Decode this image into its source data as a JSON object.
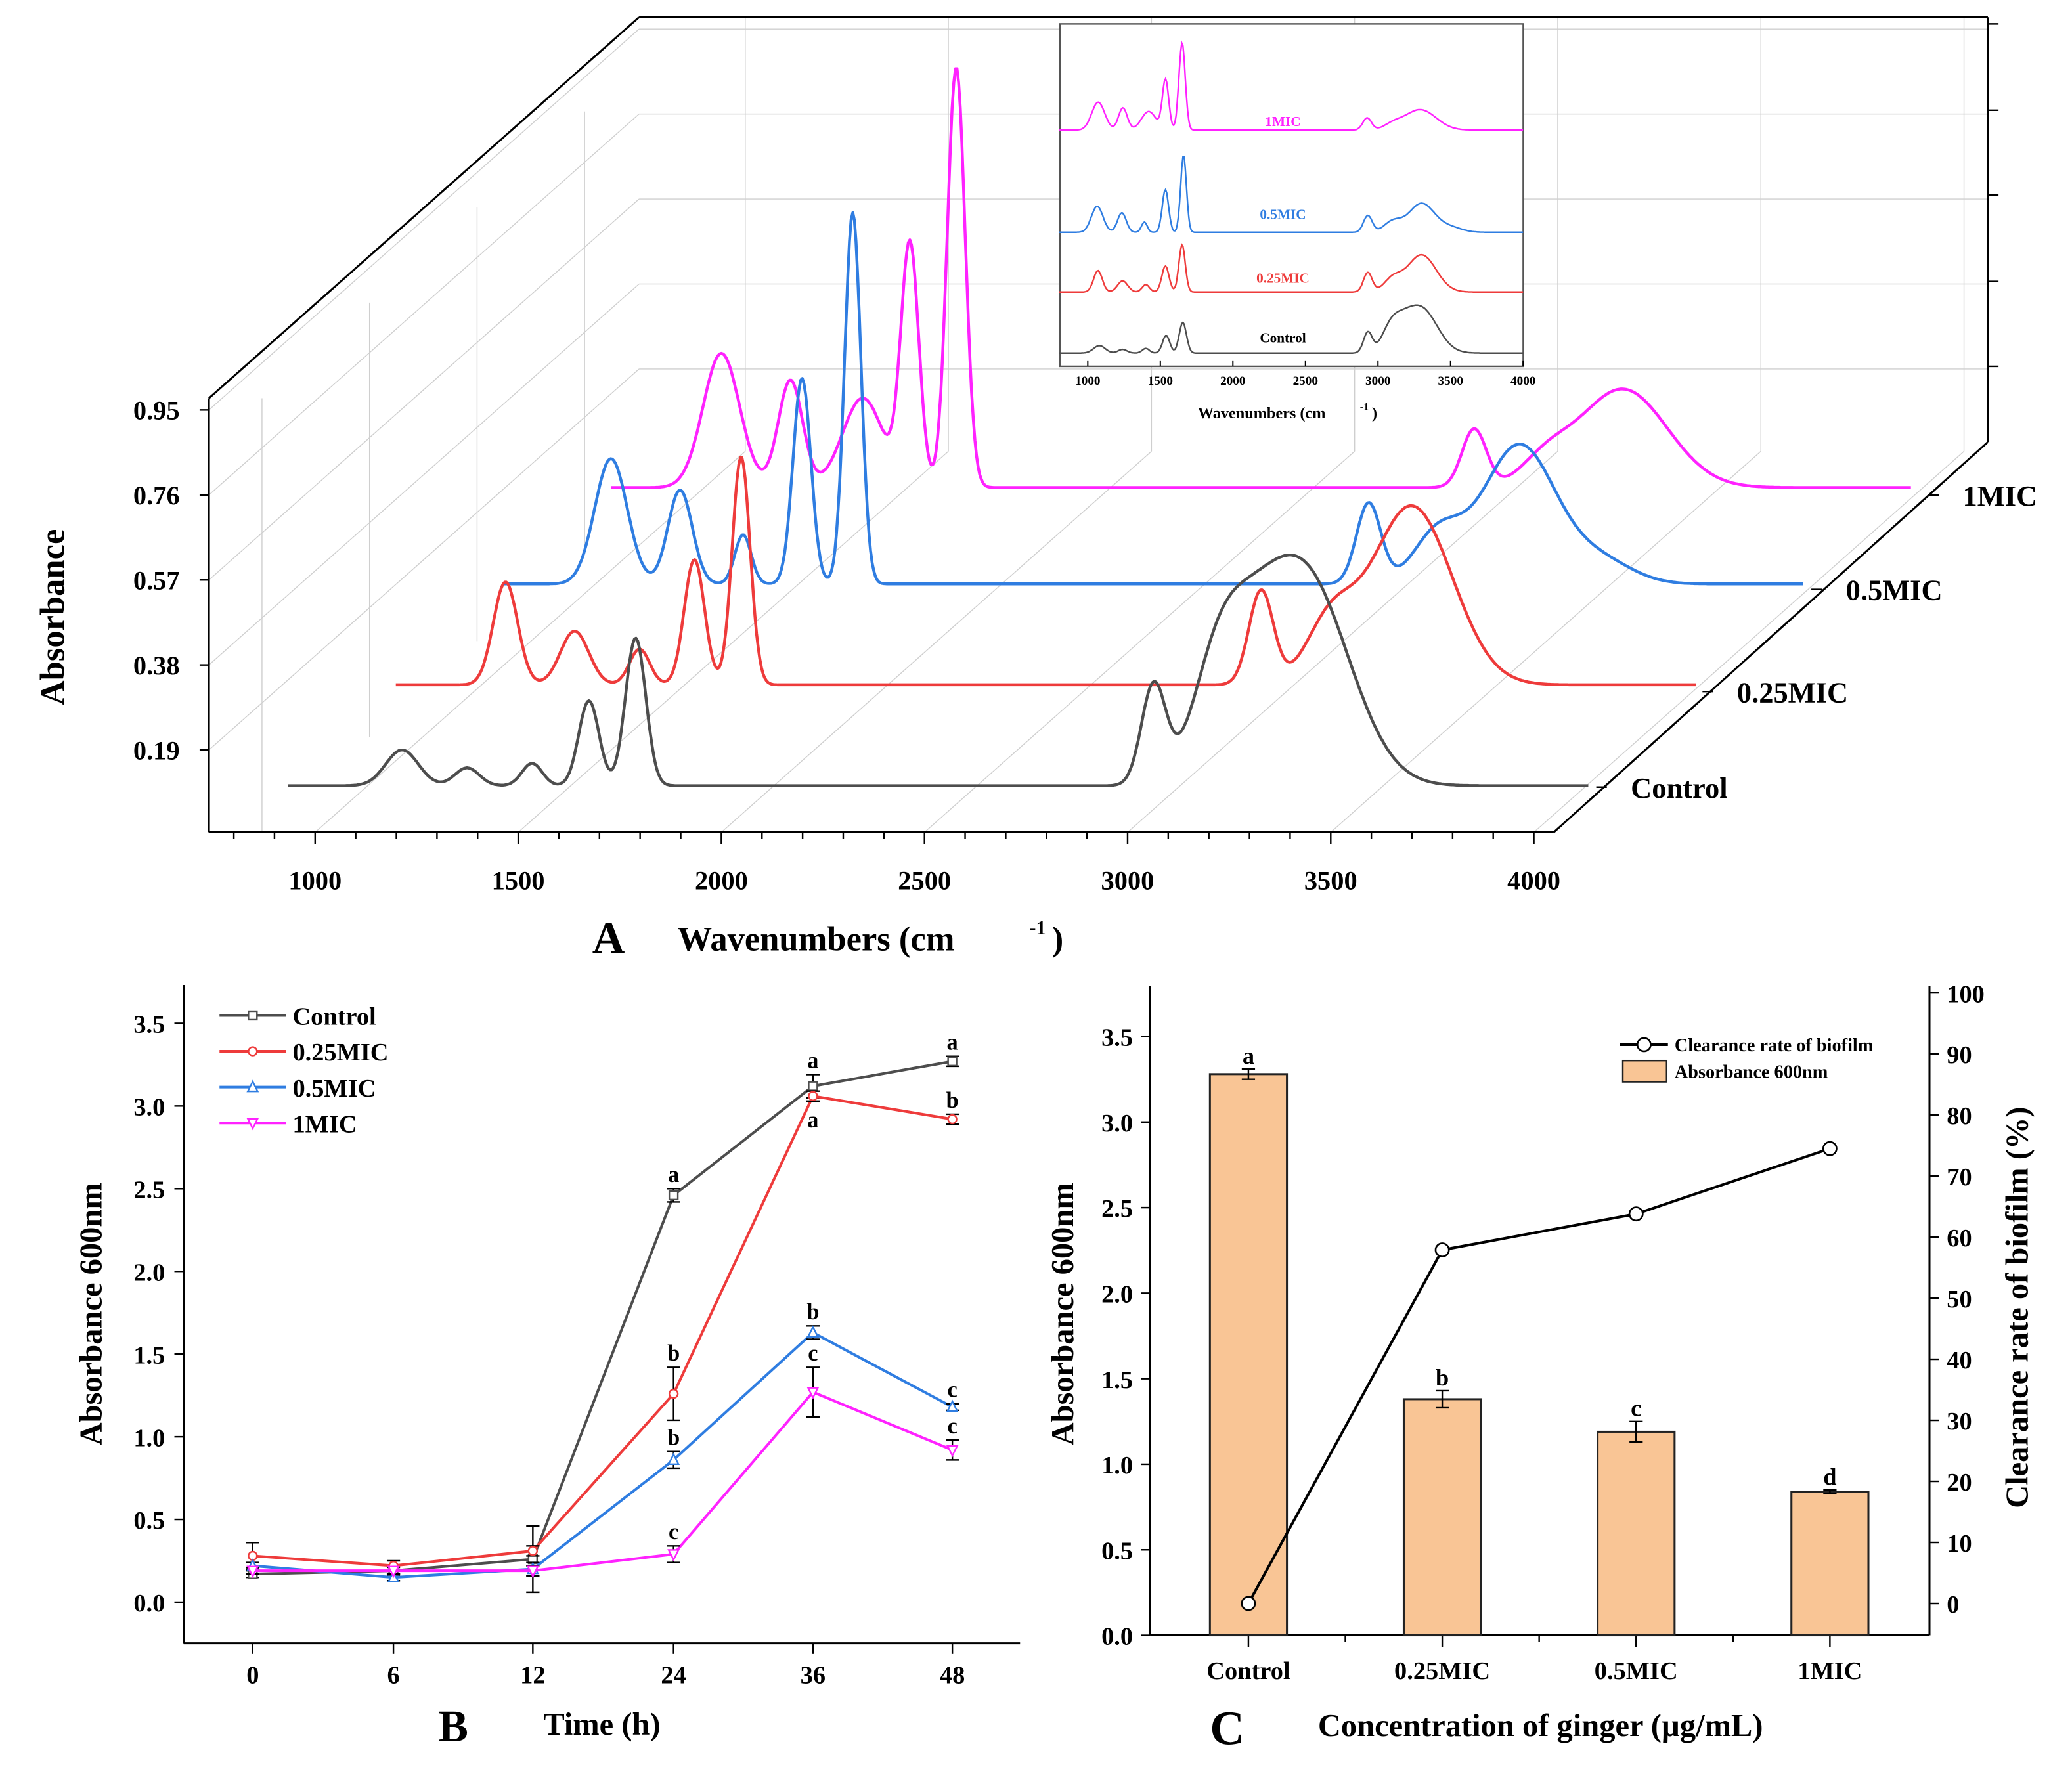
{
  "chart_data": [
    {
      "panel": "A",
      "type": "line",
      "subtype": "3d-waterfall",
      "panel_letter": "A",
      "xlabel": "Wavenumbers (cm",
      "xlabel_sup": "-1",
      "xlabel_close": ")",
      "ylabel": "Absorbance",
      "xticks": [
        "1000",
        "1500",
        "2000",
        "2500",
        "3000",
        "3500",
        "4000"
      ],
      "xtick_values": [
        1000,
        1500,
        2000,
        2500,
        3000,
        3500,
        4000
      ],
      "yticks": [
        "0.19",
        "0.38",
        "0.57",
        "0.76",
        "0.95"
      ],
      "ytick_values": [
        0.19,
        0.38,
        0.57,
        0.76,
        0.95
      ],
      "xlim": [
        800,
        4000
      ],
      "series": [
        {
          "name": "Control",
          "color": "#4d4d4d",
          "baseline": 0.11,
          "peaks": [
            [
              1080,
              0.19,
              40
            ],
            [
              1240,
              0.15,
              30
            ],
            [
              1400,
              0.16,
              25
            ],
            [
              1540,
              0.3,
              25
            ],
            [
              1655,
              0.44,
              25
            ],
            [
              2930,
              0.33,
              30
            ],
            [
              3080,
              0.27,
              60
            ],
            [
              3300,
              0.58,
              110
            ],
            [
              3150,
              0.3,
              80
            ]
          ]
        },
        {
          "name": "0.25MIC",
          "color": "#ee3b3b",
          "baseline": 0.11,
          "peaks": [
            [
              1070,
              0.34,
              30
            ],
            [
              1240,
              0.23,
              35
            ],
            [
              1400,
              0.19,
              25
            ],
            [
              1535,
              0.39,
              25
            ],
            [
              1650,
              0.62,
              22
            ],
            [
              2930,
              0.32,
              30
            ],
            [
              3100,
              0.24,
              60
            ],
            [
              3300,
              0.51,
              100
            ]
          ]
        },
        {
          "name": "0.5MIC",
          "color": "#2f7de1",
          "baseline": 0.11,
          "peaks": [
            [
              1065,
              0.39,
              40
            ],
            [
              1235,
              0.32,
              30
            ],
            [
              1390,
              0.22,
              20
            ],
            [
              1535,
              0.57,
              22
            ],
            [
              1660,
              0.94,
              20
            ],
            [
              2930,
              0.29,
              30
            ],
            [
              3100,
              0.22,
              60
            ],
            [
              3300,
              0.42,
              90
            ],
            [
              3500,
              0.16,
              80
            ]
          ]
        },
        {
          "name": "1MIC",
          "color": "#ff22ff",
          "baseline": 0.1,
          "peaks": [
            [
              1072,
              0.4,
              45
            ],
            [
              1242,
              0.34,
              30
            ],
            [
              1420,
              0.3,
              50
            ],
            [
              1536,
              0.64,
              22
            ],
            [
              1650,
              1.04,
              22
            ],
            [
              2925,
              0.23,
              30
            ],
            [
              3100,
              0.15,
              60
            ],
            [
              3290,
              0.32,
              110
            ]
          ]
        }
      ]
    },
    {
      "panel": "A-inset",
      "type": "line",
      "xlabel": "Wavenumbers (cm",
      "xlabel_sup": "-1",
      "xlabel_close": ")",
      "xticks": [
        "1000",
        "1500",
        "2000",
        "2500",
        "3000",
        "3500",
        "4000"
      ],
      "xtick_values": [
        1000,
        1500,
        2000,
        2500,
        3000,
        3500,
        4000
      ],
      "xlim": [
        800,
        4000
      ],
      "series_labels": [
        "Control",
        "0.25MIC",
        "0.5MIC",
        "1MIC"
      ]
    },
    {
      "panel": "B",
      "type": "line",
      "panel_letter": "B",
      "xlabel": "Time (h)",
      "ylabel": "Absorbance 600nm",
      "categories": [
        "0",
        "6",
        "12",
        "24",
        "36",
        "48"
      ],
      "yticks": [
        "0.0",
        "0.5",
        "1.0",
        "1.5",
        "2.0",
        "2.5",
        "3.0",
        "3.5"
      ],
      "ytick_values": [
        0,
        0.5,
        1,
        1.5,
        2,
        2.5,
        3,
        3.5
      ],
      "ylim": [
        -0.25,
        3.75
      ],
      "legend": "top-left",
      "series": [
        {
          "name": "Control",
          "color": "#4d4d4d",
          "marker": "square",
          "values": [
            0.17,
            0.19,
            0.26,
            2.46,
            3.12,
            3.27
          ],
          "errors": [
            0.02,
            0.03,
            0.2,
            0.04,
            0.07,
            0.03
          ],
          "letters": [
            "",
            "",
            "",
            "a",
            "a",
            "a"
          ]
        },
        {
          "name": "0.25MIC",
          "color": "#ee3b3b",
          "marker": "circle",
          "values": [
            0.28,
            0.22,
            0.31,
            1.26,
            3.06,
            2.92
          ],
          "errors": [
            0.08,
            0.03,
            0.03,
            0.16,
            0.03,
            0.03
          ],
          "letters": [
            "",
            "",
            "",
            "b",
            "a",
            "b"
          ]
        },
        {
          "name": "0.5MIC",
          "color": "#2f7de1",
          "marker": "triangle-up",
          "values": [
            0.22,
            0.15,
            0.2,
            0.86,
            1.63,
            1.18
          ],
          "errors": [
            0.02,
            0.02,
            0.04,
            0.05,
            0.04,
            0.02
          ],
          "letters": [
            "",
            "",
            "",
            "b",
            "b",
            "c"
          ]
        },
        {
          "name": "1MIC",
          "color": "#ff22ff",
          "marker": "triangle-down",
          "values": [
            0.19,
            0.19,
            0.19,
            0.29,
            1.27,
            0.92
          ],
          "errors": [
            0.02,
            0.02,
            0.03,
            0.05,
            0.15,
            0.06
          ],
          "letters": [
            "",
            "",
            "",
            "c",
            "c",
            "c"
          ]
        }
      ]
    },
    {
      "panel": "C",
      "type": "bar",
      "panel_letter": "C",
      "xlabel": "Concentration of ginger (µg/mL)",
      "ylabel": "Absorbance 600nm",
      "y2label": "Clearance rate of biofilm (%)",
      "categories": [
        "Control",
        "0.25MIC",
        "0.5MIC",
        "1MIC"
      ],
      "yticks": [
        "0.0",
        "0.5",
        "1.0",
        "1.5",
        "2.0",
        "2.5",
        "3.0",
        "3.5"
      ],
      "ytick_values": [
        0,
        0.5,
        1,
        1.5,
        2,
        2.5,
        3,
        3.5
      ],
      "ylim": [
        0,
        3.75
      ],
      "y2ticks": [
        "0",
        "10",
        "20",
        "30",
        "40",
        "50",
        "60",
        "70",
        "80",
        "90",
        "100"
      ],
      "y2tick_values": [
        0,
        10,
        20,
        30,
        40,
        50,
        60,
        70,
        80,
        90,
        100
      ],
      "y2lim": [
        -5,
        100
      ],
      "legend": "top-right",
      "bar_series": {
        "name": "Absorbance 600nm",
        "color": "#f9c595",
        "values": [
          3.28,
          1.38,
          1.19,
          0.84
        ],
        "errors": [
          0.03,
          0.05,
          0.06,
          0.01
        ],
        "letters": [
          "a",
          "b",
          "c",
          "d"
        ]
      },
      "line_series": {
        "name": "Clearance rate of biofilm",
        "color": "#000000",
        "values": [
          0,
          57.9,
          63.8,
          74.5
        ]
      }
    }
  ]
}
